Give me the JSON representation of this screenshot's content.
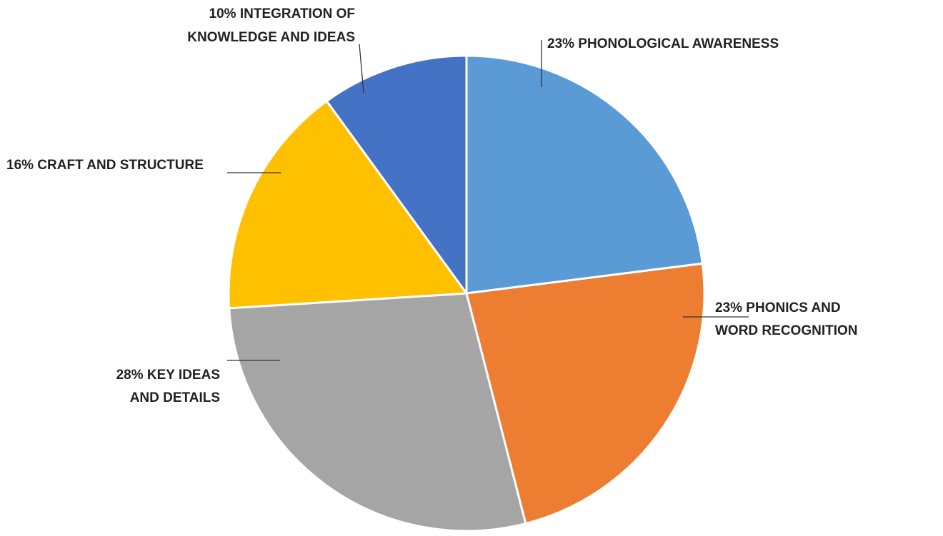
{
  "colors": {
    "phonological": "#5b9bd5",
    "phonics": "#ed7d31",
    "key_ideas": "#a5a5a5",
    "craft": "#ffc000",
    "integration": "#4472c4",
    "leader_line": "#333333",
    "separator": "#ffffff"
  },
  "chart_data": {
    "type": "pie",
    "title": "",
    "start_angle_deg": 0,
    "direction": "clockwise",
    "slices": [
      {
        "key": "phonological",
        "value": 23,
        "label_lines": [
          "23% PHONOLOGICAL AWARENESS"
        ]
      },
      {
        "key": "phonics",
        "value": 23,
        "label_lines": [
          "23% PHONICS AND",
          "WORD RECOGNITION"
        ]
      },
      {
        "key": "key_ideas",
        "value": 28,
        "label_lines": [
          "28% KEY IDEAS",
          "AND DETAILS"
        ]
      },
      {
        "key": "craft",
        "value": 16,
        "label_lines": [
          "16%  CRAFT AND STRUCTURE"
        ]
      },
      {
        "key": "integration",
        "value": 10,
        "label_lines": [
          "10% INTEGRATION OF",
          "KNOWLEDGE AND IDEAS"
        ]
      }
    ]
  }
}
